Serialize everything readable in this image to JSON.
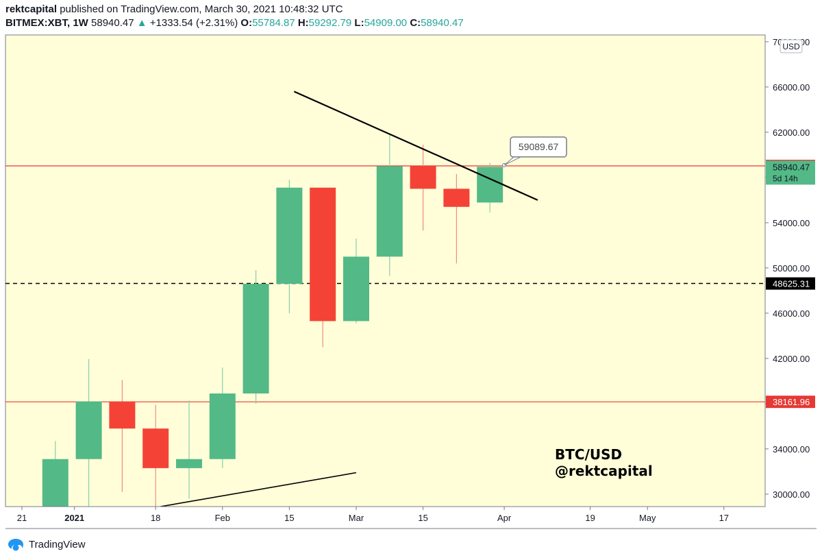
{
  "header": {
    "publisher": "rektcapital",
    "published_text": "published on TradingView.com, March 30, 2021 10:48:32 UTC",
    "symbol": "BITMEX:XBT, 1W",
    "last": "58940.47",
    "change": "+1333.54 (+2.31%)",
    "o_label": "O:",
    "o_value": "55784.87",
    "h_label": "H:",
    "h_value": "59292.79",
    "l_label": "L:",
    "l_value": "54909.00",
    "c_label": "C:",
    "c_value": "58940.47"
  },
  "footer": {
    "brand": "TradingView"
  },
  "colors": {
    "background": "#fffed9",
    "up": "#53b987",
    "down": "#f44336",
    "resistance": "#e53935",
    "trend": "#000000"
  },
  "chart_data": {
    "type": "candlestick",
    "currency": "USD",
    "ylim": [
      28900,
      70600
    ],
    "y_ticks": [
      "30000.00",
      "34000.00",
      "38000.00",
      "42000.00",
      "46000.00",
      "50000.00",
      "54000.00",
      "58000.00",
      "62000.00",
      "66000.00",
      "70000.00"
    ],
    "x_ticks": [
      {
        "label": "21",
        "date": "2020-12-21"
      },
      {
        "label": "2021",
        "date": "2021-01-01",
        "bold": true
      },
      {
        "label": "18",
        "date": "2021-01-18"
      },
      {
        "label": "Feb",
        "date": "2021-02-01"
      },
      {
        "label": "15",
        "date": "2021-02-15"
      },
      {
        "label": "Mar",
        "date": "2021-03-01"
      },
      {
        "label": "15",
        "date": "2021-03-15"
      },
      {
        "label": "Apr",
        "date": "2021-04-01"
      },
      {
        "label": "19",
        "date": "2021-04-19"
      },
      {
        "label": "May",
        "date": "2021-05-01"
      },
      {
        "label": "17",
        "date": "2021-05-17"
      }
    ],
    "candles": [
      {
        "date": "2020-12-28",
        "o": 28900,
        "h": 34700,
        "l": 28900,
        "c": 33100
      },
      {
        "date": "2021-01-04",
        "o": 33100,
        "h": 41950,
        "l": 28900,
        "c": 38200
      },
      {
        "date": "2021-01-11",
        "o": 38200,
        "h": 40100,
        "l": 30200,
        "c": 35800
      },
      {
        "date": "2021-01-18",
        "o": 35800,
        "h": 37900,
        "l": 28900,
        "c": 32300
      },
      {
        "date": "2021-01-25",
        "o": 32300,
        "h": 38300,
        "l": 29600,
        "c": 33100
      },
      {
        "date": "2021-02-01",
        "o": 33100,
        "h": 41200,
        "l": 32300,
        "c": 38900
      },
      {
        "date": "2021-02-08",
        "o": 38900,
        "h": 49800,
        "l": 38000,
        "c": 48600
      },
      {
        "date": "2021-02-15",
        "o": 48600,
        "h": 57800,
        "l": 46000,
        "c": 57100
      },
      {
        "date": "2021-02-22",
        "o": 57100,
        "h": 57100,
        "l": 43000,
        "c": 45300
      },
      {
        "date": "2021-03-01",
        "o": 45300,
        "h": 52600,
        "l": 45100,
        "c": 51000
      },
      {
        "date": "2021-03-08",
        "o": 51000,
        "h": 61800,
        "l": 49300,
        "c": 59000
      },
      {
        "date": "2021-03-15",
        "o": 59000,
        "h": 60900,
        "l": 53300,
        "c": 57000
      },
      {
        "date": "2021-03-22",
        "o": 57000,
        "h": 58300,
        "l": 50400,
        "c": 55400
      },
      {
        "date": "2021-03-29",
        "o": 55784.87,
        "h": 59292.79,
        "l": 54909.0,
        "c": 58940.47
      }
    ],
    "horizontal_lines": [
      {
        "value": 59021.16,
        "label": "59021.16",
        "style": "solid",
        "color": "#e53935"
      },
      {
        "value": 48625.31,
        "label": "48625.31",
        "style": "dashed",
        "color": "#000000"
      },
      {
        "value": 38161.96,
        "label": "38161.96",
        "style": "solid",
        "color": "#e53935"
      }
    ],
    "price_label": {
      "value": 58940.47,
      "label": "58940.47",
      "sublabel": "5d 14h"
    },
    "trend_lines": [
      {
        "from": {
          "date": "2021-02-16",
          "value": 65600
        },
        "to": {
          "date": "2021-04-08",
          "value": 56000
        }
      },
      {
        "from": {
          "date": "2021-01-19",
          "value": 28900
        },
        "to": {
          "date": "2021-03-01",
          "value": 31900
        }
      }
    ],
    "callout": {
      "date": "2021-04-01",
      "value": 59089.67,
      "label": "59089.67"
    },
    "annotations": [
      "BTC/USD",
      "@rektcapital"
    ]
  }
}
